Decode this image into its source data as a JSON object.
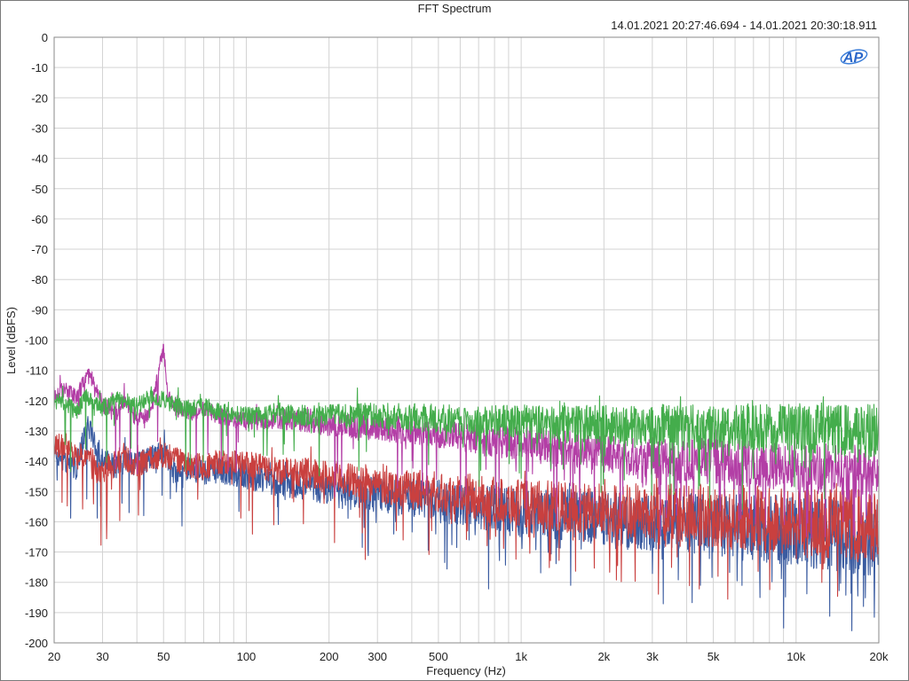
{
  "chart_data": {
    "type": "line",
    "title": "FFT Spectrum",
    "subtitle": "14.01.2021 20:27:46.694 - 14.01.2021 20:30:18.911",
    "xlabel": "Frequency (Hz)",
    "ylabel": "Level (dBFS)",
    "xscale": "log",
    "xlim": [
      20,
      20000
    ],
    "ylim": [
      -200,
      0
    ],
    "grid": true,
    "logo_text": "AP",
    "x_ticks": [
      {
        "value": 20,
        "label": "20"
      },
      {
        "value": 30,
        "label": "30"
      },
      {
        "value": 50,
        "label": "50"
      },
      {
        "value": 100,
        "label": "100"
      },
      {
        "value": 200,
        "label": "200"
      },
      {
        "value": 300,
        "label": "300"
      },
      {
        "value": 500,
        "label": "500"
      },
      {
        "value": 1000,
        "label": "1k"
      },
      {
        "value": 2000,
        "label": "2k"
      },
      {
        "value": 3000,
        "label": "3k"
      },
      {
        "value": 5000,
        "label": "5k"
      },
      {
        "value": 10000,
        "label": "10k"
      },
      {
        "value": 20000,
        "label": "20k"
      }
    ],
    "y_ticks": [
      0,
      -10,
      -20,
      -30,
      -40,
      -50,
      -60,
      -70,
      -80,
      -90,
      -100,
      -110,
      -120,
      -130,
      -140,
      -150,
      -160,
      -170,
      -180,
      -190,
      -200
    ],
    "series": [
      {
        "color": "#3a5ba0",
        "points": [
          [
            20,
            -137
          ],
          [
            22,
            -140
          ],
          [
            24,
            -142
          ],
          [
            26,
            -131
          ],
          [
            27,
            -128
          ],
          [
            28,
            -133
          ],
          [
            30,
            -139
          ],
          [
            33,
            -142
          ],
          [
            36,
            -140
          ],
          [
            40,
            -141
          ],
          [
            45,
            -139
          ],
          [
            50,
            -137
          ],
          [
            55,
            -143
          ],
          [
            60,
            -142
          ],
          [
            70,
            -144
          ],
          [
            80,
            -143
          ],
          [
            100,
            -145
          ],
          [
            130,
            -147
          ],
          [
            170,
            -148
          ],
          [
            200,
            -150
          ],
          [
            300,
            -151
          ],
          [
            500,
            -153
          ],
          [
            700,
            -155
          ],
          [
            1000,
            -157
          ],
          [
            2000,
            -159
          ],
          [
            3000,
            -160
          ],
          [
            5000,
            -161
          ],
          [
            10000,
            -163
          ],
          [
            15000,
            -165
          ],
          [
            20000,
            -166
          ]
        ],
        "noise": 7,
        "floor": -196
      },
      {
        "color": "#c9403f",
        "points": [
          [
            20,
            -136
          ],
          [
            22,
            -134
          ],
          [
            24,
            -139
          ],
          [
            26,
            -138
          ],
          [
            28,
            -143
          ],
          [
            30,
            -144
          ],
          [
            33,
            -140
          ],
          [
            36,
            -139
          ],
          [
            40,
            -141
          ],
          [
            45,
            -139
          ],
          [
            50,
            -138
          ],
          [
            55,
            -139
          ],
          [
            60,
            -141
          ],
          [
            70,
            -142
          ],
          [
            80,
            -140
          ],
          [
            100,
            -141
          ],
          [
            130,
            -143
          ],
          [
            170,
            -144
          ],
          [
            200,
            -145
          ],
          [
            300,
            -148
          ],
          [
            500,
            -150
          ],
          [
            700,
            -152
          ],
          [
            1000,
            -154
          ],
          [
            2000,
            -156
          ],
          [
            3000,
            -157
          ],
          [
            5000,
            -158
          ],
          [
            10000,
            -160
          ],
          [
            15000,
            -161
          ],
          [
            20000,
            -162
          ]
        ],
        "noise": 7,
        "floor": -192
      },
      {
        "color": "#b33fa6",
        "points": [
          [
            20,
            -118
          ],
          [
            22,
            -117
          ],
          [
            24,
            -119
          ],
          [
            26,
            -113
          ],
          [
            27,
            -111
          ],
          [
            28,
            -116
          ],
          [
            30,
            -121
          ],
          [
            33,
            -125
          ],
          [
            36,
            -120
          ],
          [
            40,
            -126
          ],
          [
            45,
            -124
          ],
          [
            50,
            -102
          ],
          [
            52,
            -119
          ],
          [
            55,
            -122
          ],
          [
            60,
            -124
          ],
          [
            70,
            -123
          ],
          [
            80,
            -125
          ],
          [
            100,
            -127
          ],
          [
            130,
            -126
          ],
          [
            170,
            -127
          ],
          [
            200,
            -128
          ],
          [
            300,
            -129
          ],
          [
            500,
            -131
          ],
          [
            700,
            -133
          ],
          [
            1000,
            -134
          ],
          [
            2000,
            -137
          ],
          [
            3000,
            -139
          ],
          [
            5000,
            -140
          ],
          [
            10000,
            -142
          ],
          [
            15000,
            -143
          ],
          [
            20000,
            -144
          ]
        ],
        "noise": 5,
        "floor": -185
      },
      {
        "color": "#44ad4c",
        "points": [
          [
            20,
            -121
          ],
          [
            22,
            -120
          ],
          [
            24,
            -124
          ],
          [
            26,
            -119
          ],
          [
            28,
            -121
          ],
          [
            30,
            -123
          ],
          [
            33,
            -119
          ],
          [
            36,
            -121
          ],
          [
            40,
            -122
          ],
          [
            45,
            -118
          ],
          [
            50,
            -120
          ],
          [
            55,
            -121
          ],
          [
            60,
            -123
          ],
          [
            70,
            -122
          ],
          [
            80,
            -124
          ],
          [
            100,
            -125
          ],
          [
            130,
            -124
          ],
          [
            170,
            -125
          ],
          [
            200,
            -125
          ],
          [
            300,
            -125
          ],
          [
            500,
            -126
          ],
          [
            700,
            -127
          ],
          [
            1000,
            -127
          ],
          [
            2000,
            -128
          ],
          [
            3000,
            -128
          ],
          [
            5000,
            -129
          ],
          [
            10000,
            -129
          ],
          [
            15000,
            -130
          ],
          [
            20000,
            -130
          ]
        ],
        "noise": 5,
        "floor": -170
      }
    ]
  }
}
